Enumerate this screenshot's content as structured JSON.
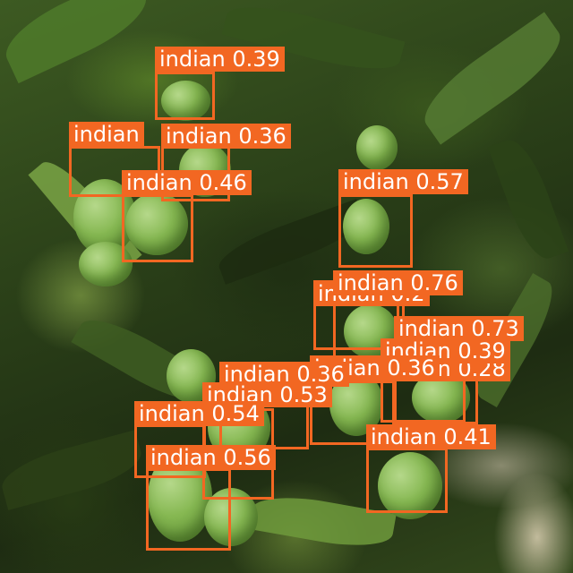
{
  "image": {
    "subject": "mango-tree-foliage-with-fruit",
    "label_color": "#f26722",
    "label_text_color": "#ffffff"
  },
  "detections": [
    {
      "label": "indian",
      "score": "0.39"
    },
    {
      "label": "indian",
      "score": "0.36"
    },
    {
      "label": "indian",
      "score": ""
    },
    {
      "label": "indian",
      "score": "0.46"
    },
    {
      "label": "indian",
      "score": "0.57"
    },
    {
      "label": "indian",
      "score": "0.76"
    },
    {
      "label": "indian",
      "score": "0.2"
    },
    {
      "label": "indian",
      "score": "0.73"
    },
    {
      "label": "indian",
      "score": "0.39"
    },
    {
      "label": "indian",
      "score": "0.28"
    },
    {
      "label": "indian",
      "score": "0.36"
    },
    {
      "label": "indian",
      "score": "0.53"
    },
    {
      "label": "indian",
      "score": "0.54"
    },
    {
      "label": "indian",
      "score": "0.41"
    },
    {
      "label": "indian",
      "score": "0.56"
    }
  ]
}
